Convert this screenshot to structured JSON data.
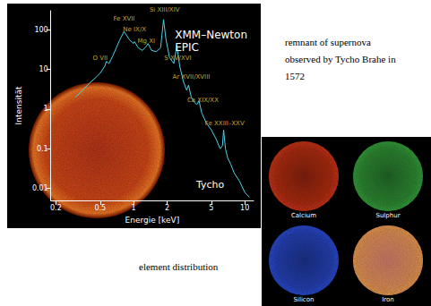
{
  "chart_data": {
    "type": "line",
    "title": "XMM–Newton",
    "subtitle": "EPIC",
    "inset_label": "Tycho",
    "x_label": "Energie [keV]",
    "y_label": "Intensität",
    "log": true,
    "grid": false,
    "color": "#4fd0e6",
    "xlim": [
      0.18,
      12
    ],
    "ylim": [
      0.005,
      300
    ],
    "xticks": [
      0.2,
      0.5,
      1,
      2,
      5,
      10
    ],
    "yticks": [
      0.01,
      0.1,
      1,
      10,
      100
    ],
    "x": [
      0.3,
      0.35,
      0.4,
      0.45,
      0.5,
      0.55,
      0.57,
      0.6,
      0.65,
      0.7,
      0.75,
      0.82,
      0.87,
      0.92,
      1.0,
      1.02,
      1.1,
      1.2,
      1.3,
      1.35,
      1.45,
      1.6,
      1.75,
      1.86,
      1.95,
      2.1,
      2.3,
      2.45,
      2.6,
      2.8,
      3.0,
      3.12,
      3.3,
      3.5,
      3.7,
      3.88,
      4.1,
      4.5,
      5.0,
      5.5,
      6.0,
      6.3,
      6.45,
      6.7,
      7.0,
      7.5,
      8.0,
      9.0,
      10.0,
      11.0
    ],
    "values": [
      2,
      3,
      4.5,
      6,
      8,
      12,
      16,
      14,
      22,
      35,
      55,
      90,
      70,
      55,
      45,
      50,
      35,
      30,
      38,
      45,
      30,
      28,
      35,
      180,
      60,
      20,
      14,
      40,
      12,
      5,
      3,
      4,
      2,
      1.5,
      1.3,
      1.6,
      0.8,
      0.45,
      0.3,
      0.18,
      0.1,
      0.12,
      0.3,
      0.1,
      0.06,
      0.04,
      0.025,
      0.015,
      0.008,
      0.006
    ],
    "annotations": [
      {
        "text": "O VII",
        "x": 0.5,
        "y": 15
      },
      {
        "text": "Fe XVII",
        "x": 0.82,
        "y": 150
      },
      {
        "text": "Ne IX/X",
        "x": 1.02,
        "y": 80
      },
      {
        "text": "Mg XI",
        "x": 1.3,
        "y": 40
      },
      {
        "text": "Si XIII/XIV",
        "x": 1.9,
        "y": 250
      },
      {
        "text": "S XV/XVI",
        "x": 2.5,
        "y": 15
      },
      {
        "text": "Ar XVII/XVIII",
        "x": 3.3,
        "y": 5
      },
      {
        "text": "Ca XIX/XX",
        "x": 4.2,
        "y": 1.3
      },
      {
        "text": "Fe XXIII–XXV",
        "x": 6.6,
        "y": 0.35
      }
    ]
  },
  "caption": "remnant of supernova observed by Tycho Brahe in 1572",
  "element_caption": "element distribution",
  "element_maps": [
    {
      "label": "Calcium",
      "color": "#d0381c"
    },
    {
      "label": "Sulphur",
      "color": "#3aa540"
    },
    {
      "label": "Silicon",
      "color": "#3050d8"
    },
    {
      "label": "Iron",
      "color": "#f0a050"
    }
  ]
}
